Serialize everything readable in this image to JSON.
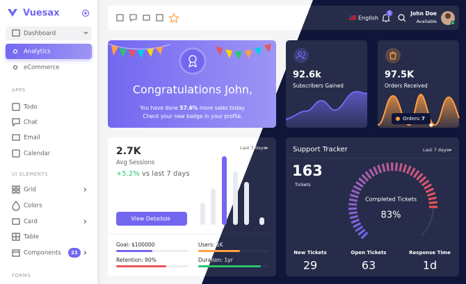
{
  "sidebar": {
    "brand": "Vuesax",
    "items": [
      {
        "label": "Dashboard"
      },
      {
        "label": "Analytics"
      },
      {
        "label": "eCommerce"
      }
    ],
    "sections": [
      {
        "title": "APPS",
        "items": [
          "Todo",
          "Chat",
          "Email",
          "Calendar"
        ]
      },
      {
        "title": "UI ELEMENTS",
        "items": [
          "Grid",
          "Colors",
          "Card",
          "Table",
          "Components"
        ]
      },
      {
        "title": "FORMS",
        "items": []
      }
    ],
    "components_badge": "21"
  },
  "navbar": {
    "language": "English",
    "notifications": "5",
    "user_name": "John Doe",
    "user_status": "Available"
  },
  "congrats": {
    "title": "Congratulations John,",
    "line1_prefix": "You have done",
    "line1_highlight": "57.6%",
    "line1_suffix": "more sales today.",
    "line2": "Check your new badge in your profile."
  },
  "subscribers": {
    "value": "92.6k",
    "label": "Subscribers Gained"
  },
  "orders": {
    "value": "97.5K",
    "label": "Orders Received",
    "tooltip_label": "Orders:",
    "tooltip_value": "7"
  },
  "sessions": {
    "value": "2.7K",
    "label": "Avg Sessions",
    "change": "+5.2%",
    "change_text": "vs last 7 days",
    "range": "Last 7 days",
    "button": "View Details",
    "goals": [
      "Goal: $100000",
      "Users: 1K",
      "Retention: 90%",
      "Duration: 1yr"
    ]
  },
  "support": {
    "title": "Support Tracker",
    "range": "Last 7 days",
    "tickets_value": "163",
    "tickets_label": "Tickets",
    "gauge_label": "Completed Tickets",
    "gauge_value": "83%",
    "stats": [
      {
        "label": "New Tickets",
        "value": "29"
      },
      {
        "label": "Open Tickets",
        "value": "63"
      },
      {
        "label": "Response Time",
        "value": "1d"
      }
    ]
  }
}
